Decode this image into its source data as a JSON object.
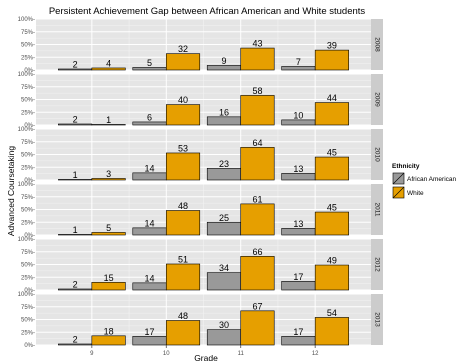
{
  "chart_data": {
    "type": "bar",
    "title": "Persistent Achievement Gap between African American and White students",
    "xlabel": "Grade",
    "ylabel": "Advanced Coursetaking",
    "ylim": [
      0,
      100
    ],
    "y_tick_labels": [
      "0%-",
      "25%-",
      "50%-",
      "75%-",
      "100%-"
    ],
    "y_ticks": [
      0,
      25,
      50,
      75,
      100
    ],
    "categories": [
      "9",
      "10",
      "11",
      "12"
    ],
    "legend": {
      "title": "Ethnicity",
      "position": "right",
      "entries": [
        {
          "name": "African American",
          "color": "#999999"
        },
        {
          "name": "White",
          "color": "#E69F00"
        }
      ]
    },
    "facets": [
      {
        "label": "2008",
        "series": [
          {
            "name": "African American",
            "values": [
              2,
              5,
              9,
              7
            ]
          },
          {
            "name": "White",
            "values": [
              4,
              32,
              43,
              39
            ]
          }
        ]
      },
      {
        "label": "2009",
        "series": [
          {
            "name": "African American",
            "values": [
              2,
              6,
              16,
              10
            ]
          },
          {
            "name": "White",
            "values": [
              1,
              40,
              58,
              44
            ]
          }
        ]
      },
      {
        "label": "2010",
        "series": [
          {
            "name": "African American",
            "values": [
              1,
              14,
              23,
              13
            ]
          },
          {
            "name": "White",
            "values": [
              3,
              53,
              64,
              45
            ]
          }
        ]
      },
      {
        "label": "2011",
        "series": [
          {
            "name": "African American",
            "values": [
              1,
              14,
              25,
              13
            ]
          },
          {
            "name": "White",
            "values": [
              5,
              48,
              61,
              45
            ]
          }
        ]
      },
      {
        "label": "2012",
        "series": [
          {
            "name": "African American",
            "values": [
              2,
              14,
              34,
              17
            ]
          },
          {
            "name": "White",
            "values": [
              15,
              51,
              66,
              49
            ]
          }
        ]
      },
      {
        "label": "2013",
        "series": [
          {
            "name": "African American",
            "values": [
              2,
              17,
              30,
              17
            ]
          },
          {
            "name": "White",
            "values": [
              18,
              48,
              67,
              54
            ]
          }
        ]
      }
    ],
    "grid": true,
    "colors": {
      "panel_bg": "#E5E5E5",
      "grid_major": "#FFFFFF",
      "grid_minor": "#F2F2F2",
      "strip_bg": "#CCCCCC",
      "african_american": "#999999",
      "white": "#E69F00",
      "bar_outline": "#000000"
    }
  }
}
